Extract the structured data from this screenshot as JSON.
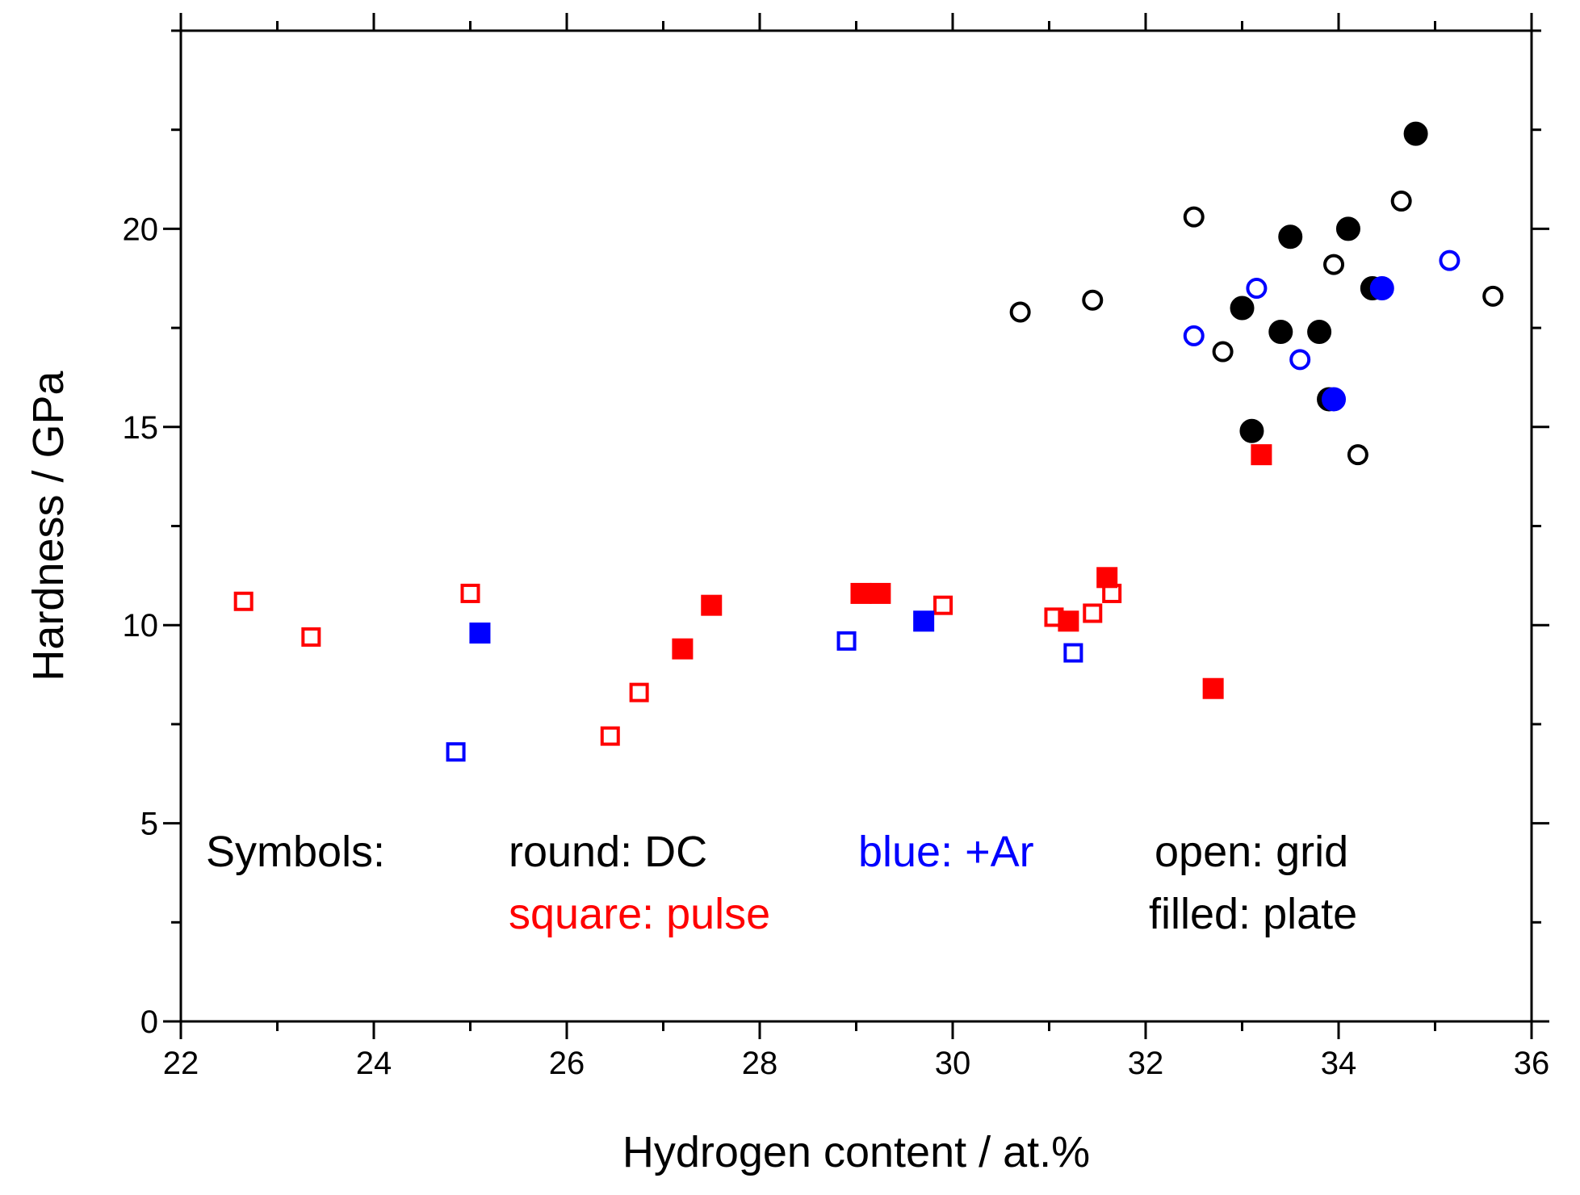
{
  "chart_data": {
    "type": "scatter",
    "title": "",
    "xlabel": "Hydrogen content / at.%",
    "ylabel": "Hardness / GPa",
    "xlim": [
      22,
      36
    ],
    "ylim": [
      0,
      25
    ],
    "x_ticks": [
      22,
      24,
      26,
      28,
      30,
      32,
      34,
      36
    ],
    "y_ticks": [
      0,
      5,
      10,
      15,
      20
    ],
    "legend_notes": {
      "heading": "Symbols:",
      "round": "round: DC",
      "square": "square: pulse",
      "blue": "blue: +Ar",
      "open": "open: grid",
      "filled": "filled: plate"
    },
    "colors": {
      "black": "#000000",
      "red": "#ff0000",
      "blue": "#0000ff"
    },
    "series": [
      {
        "name": "DC grid",
        "marker": "circle",
        "fill": "open",
        "color": "#000000",
        "points": [
          [
            30.7,
            17.9
          ],
          [
            31.45,
            18.2
          ],
          [
            32.5,
            20.3
          ],
          [
            32.8,
            16.9
          ],
          [
            33.95,
            19.1
          ],
          [
            34.65,
            20.7
          ],
          [
            35.6,
            18.3
          ],
          [
            34.2,
            14.3
          ]
        ]
      },
      {
        "name": "DC plate",
        "marker": "circle",
        "fill": "filled",
        "color": "#000000",
        "points": [
          [
            33.0,
            18.0
          ],
          [
            33.4,
            17.4
          ],
          [
            33.5,
            19.8
          ],
          [
            34.1,
            20.0
          ],
          [
            33.8,
            17.4
          ],
          [
            33.9,
            15.7
          ],
          [
            33.1,
            14.9
          ],
          [
            34.35,
            18.5
          ],
          [
            34.8,
            22.4
          ]
        ]
      },
      {
        "name": "DC grid +Ar",
        "marker": "circle",
        "fill": "open",
        "color": "#0000ff",
        "points": [
          [
            32.5,
            17.3
          ],
          [
            33.15,
            18.5
          ],
          [
            33.6,
            16.7
          ],
          [
            35.15,
            19.2
          ]
        ]
      },
      {
        "name": "DC plate +Ar",
        "marker": "circle",
        "fill": "filled",
        "color": "#0000ff",
        "points": [
          [
            33.95,
            15.7
          ],
          [
            34.45,
            18.5
          ]
        ]
      },
      {
        "name": "pulse grid",
        "marker": "square",
        "fill": "open",
        "color": "#ff0000",
        "points": [
          [
            22.65,
            10.6
          ],
          [
            23.35,
            9.7
          ],
          [
            25.0,
            10.8
          ],
          [
            26.45,
            7.2
          ],
          [
            26.75,
            8.3
          ],
          [
            29.9,
            10.5
          ],
          [
            31.05,
            10.2
          ],
          [
            31.45,
            10.3
          ],
          [
            31.65,
            10.8
          ]
        ]
      },
      {
        "name": "pulse plate",
        "marker": "square",
        "fill": "filled",
        "color": "#ff0000",
        "points": [
          [
            27.2,
            9.4
          ],
          [
            27.5,
            10.5
          ],
          [
            29.05,
            10.8
          ],
          [
            29.25,
            10.8
          ],
          [
            31.2,
            10.1
          ],
          [
            31.6,
            11.2
          ],
          [
            32.7,
            8.4
          ],
          [
            33.2,
            14.3
          ]
        ]
      },
      {
        "name": "pulse grid +Ar",
        "marker": "square",
        "fill": "open",
        "color": "#0000ff",
        "points": [
          [
            24.85,
            6.8
          ],
          [
            28.9,
            9.6
          ],
          [
            31.25,
            9.3
          ]
        ]
      },
      {
        "name": "pulse plate +Ar",
        "marker": "square",
        "fill": "filled",
        "color": "#0000ff",
        "points": [
          [
            25.1,
            9.8
          ],
          [
            29.7,
            10.1
          ]
        ]
      }
    ]
  }
}
